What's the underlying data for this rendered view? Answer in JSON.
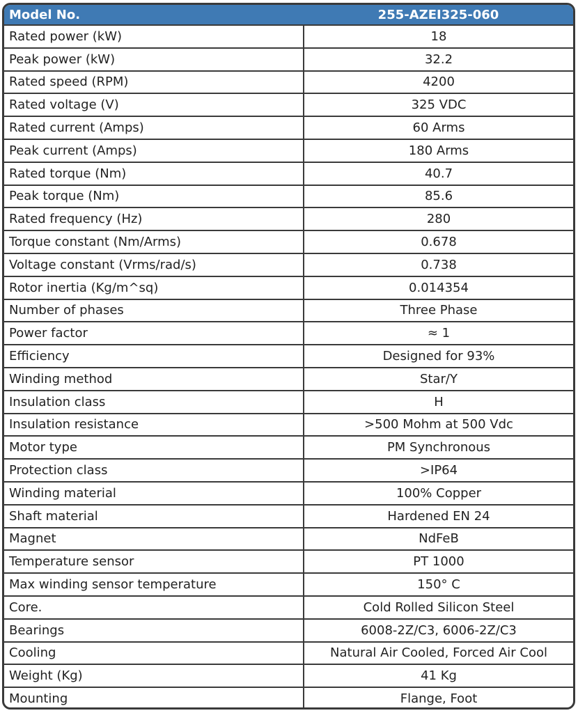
{
  "header": {
    "label": "Model No.",
    "value": "255-AZEI325-060"
  },
  "accent_color": "#3f7ab4",
  "rows": [
    {
      "label": "Rated power (kW)",
      "value": "18"
    },
    {
      "label": "Peak power (kW)",
      "value": "32.2"
    },
    {
      "label": "Rated speed (RPM)",
      "value": "4200"
    },
    {
      "label": "Rated voltage (V)",
      "value": "325 VDC"
    },
    {
      "label": "Rated current (Amps)",
      "value": "60 Arms"
    },
    {
      "label": "Peak current (Amps)",
      "value": "180 Arms"
    },
    {
      "label": "Rated torque (Nm)",
      "value": "40.7"
    },
    {
      "label": "Peak torque (Nm)",
      "value": "85.6"
    },
    {
      "label": "Rated frequency (Hz)",
      "value": "280"
    },
    {
      "label": "Torque constant (Nm/Arms)",
      "value": "0.678"
    },
    {
      "label": "Voltage constant (Vrms/rad/s)",
      "value": "0.738"
    },
    {
      "label": "Rotor inertia (Kg/m^sq)",
      "value": "0.014354"
    },
    {
      "label": "Number of phases",
      "value": "Three Phase"
    },
    {
      "label": "Power factor",
      "value": "≈ 1"
    },
    {
      "label": "Efficiency",
      "value": "Designed for 93%"
    },
    {
      "label": "Winding method",
      "value": "Star/Y"
    },
    {
      "label": "Insulation class",
      "value": "H"
    },
    {
      "label": "Insulation resistance",
      "value": ">500 Mohm at 500 Vdc"
    },
    {
      "label": "Motor type",
      "value": "PM Synchronous"
    },
    {
      "label": "Protection class",
      "value": ">IP64"
    },
    {
      "label": "Winding material",
      "value": "100% Copper"
    },
    {
      "label": "Shaft material",
      "value": "Hardened EN 24"
    },
    {
      "label": "Magnet",
      "value": "NdFeB"
    },
    {
      "label": "Temperature sensor",
      "value": "PT 1000"
    },
    {
      "label": "Max winding sensor temperature",
      "value": "150° C"
    },
    {
      "label": "Core.",
      "value": "Cold Rolled Silicon Steel"
    },
    {
      "label": "Bearings",
      "value": "6008-2Z/C3, 6006-2Z/C3"
    },
    {
      "label": "Cooling",
      "value": "Natural Air Cooled, Forced Air Cool"
    },
    {
      "label": "Weight (Kg)",
      "value": "41 Kg"
    },
    {
      "label": "Mounting",
      "value": "Flange, Foot"
    }
  ]
}
